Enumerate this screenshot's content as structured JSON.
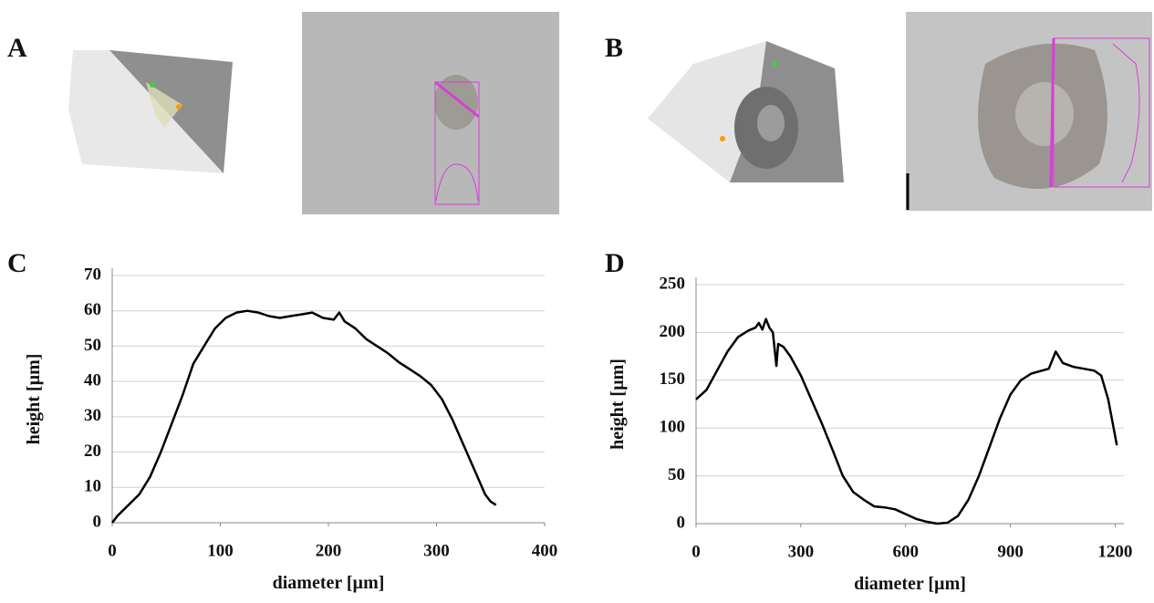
{
  "panels": [
    "A",
    "B"
  ],
  "chart_data": [
    {
      "type": "line",
      "panel_label": "C",
      "x_label": "diameter [µm]",
      "y_label": "height [µm]",
      "xlim": [
        0,
        400
      ],
      "xticks": [
        0,
        100,
        200,
        300,
        400
      ],
      "ylim": [
        0,
        70
      ],
      "yticks": [
        0,
        10,
        20,
        30,
        40,
        50,
        60,
        70
      ],
      "grid": true,
      "series": [
        {
          "color": "#000000",
          "x": [
            0,
            5,
            15,
            25,
            35,
            45,
            55,
            65,
            75,
            85,
            95,
            105,
            115,
            125,
            135,
            145,
            155,
            165,
            175,
            185,
            195,
            205,
            210,
            215,
            225,
            235,
            245,
            255,
            265,
            275,
            285,
            295,
            305,
            315,
            325,
            335,
            345,
            350,
            355
          ],
          "values": [
            0,
            2,
            5,
            8,
            13,
            20,
            28,
            36,
            45,
            50,
            55,
            58,
            59.5,
            60,
            59.5,
            58.5,
            58,
            58.5,
            59,
            59.5,
            58,
            57.5,
            59.5,
            57,
            55,
            52,
            50,
            48,
            45.5,
            43.5,
            41.5,
            39,
            35,
            29,
            22,
            15,
            8,
            6,
            5
          ]
        }
      ]
    },
    {
      "type": "line",
      "panel_label": "D",
      "x_label": "diameter [µm]",
      "y_label": "height [µm]",
      "xlim": [
        0,
        1225
      ],
      "xticks": [
        0,
        300,
        600,
        900,
        1200
      ],
      "ylim": [
        0,
        250
      ],
      "yticks": [
        0,
        50,
        100,
        150,
        200,
        250
      ],
      "grid": true,
      "series": [
        {
          "color": "#000000",
          "x": [
            0,
            30,
            60,
            90,
            120,
            150,
            170,
            180,
            190,
            200,
            210,
            220,
            230,
            235,
            250,
            270,
            300,
            330,
            360,
            390,
            420,
            450,
            480,
            510,
            540,
            570,
            600,
            630,
            660,
            690,
            720,
            750,
            780,
            810,
            840,
            870,
            900,
            930,
            960,
            990,
            1010,
            1030,
            1050,
            1080,
            1110,
            1140,
            1160,
            1180,
            1205
          ],
          "values": [
            130,
            140,
            160,
            180,
            195,
            202,
            205,
            210,
            203,
            214,
            205,
            200,
            165,
            188,
            185,
            175,
            155,
            130,
            105,
            78,
            50,
            33,
            25,
            18,
            17,
            15,
            10,
            5,
            2,
            0,
            1,
            8,
            25,
            50,
            80,
            110,
            135,
            150,
            157,
            160,
            162,
            180,
            168,
            164,
            162,
            160,
            155,
            130,
            82
          ]
        }
      ]
    }
  ]
}
